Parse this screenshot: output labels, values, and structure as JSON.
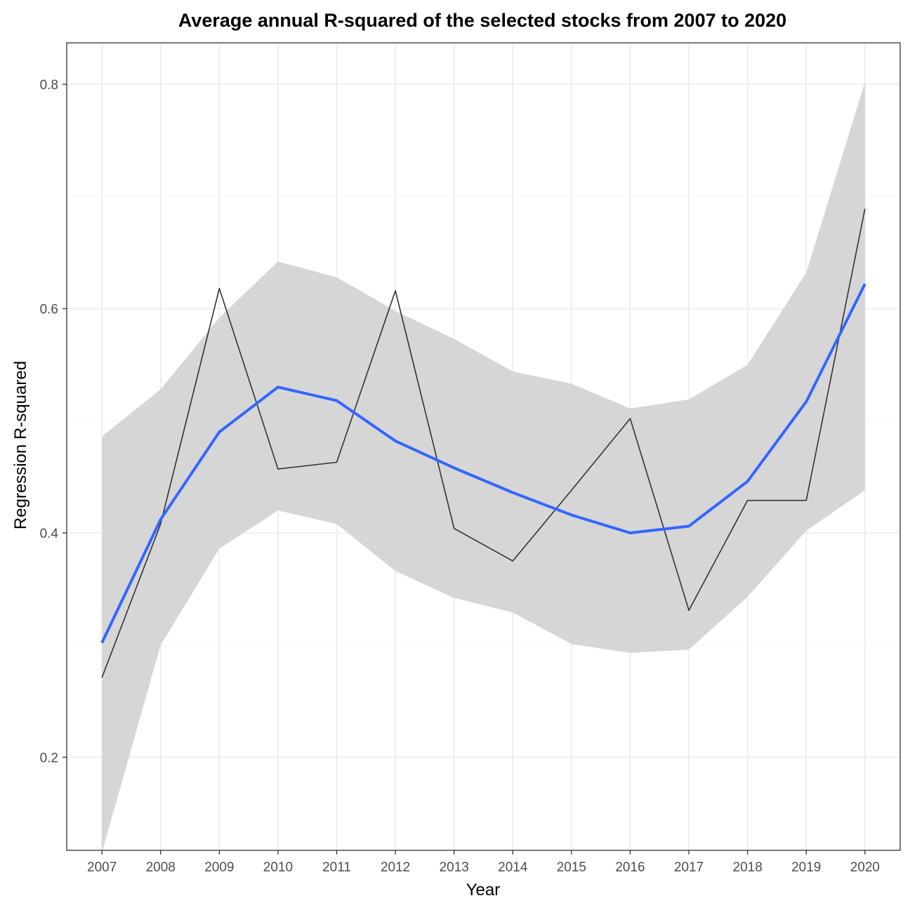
{
  "chart_data": {
    "type": "line",
    "title": "Average annual R-squared of the selected stocks from 2007 to 2020",
    "xlabel": "Year",
    "ylabel": "Regression R-squared",
    "x": [
      2007,
      2008,
      2009,
      2010,
      2011,
      2012,
      2013,
      2014,
      2015,
      2016,
      2017,
      2018,
      2019,
      2020
    ],
    "x_tick_labels": [
      "2007",
      "2008",
      "2009",
      "2010",
      "2011",
      "2012",
      "2013",
      "2014",
      "2015",
      "2016",
      "2017",
      "2018",
      "2019",
      "2020"
    ],
    "y_tick_values": [
      0.2,
      0.4,
      0.6,
      0.8
    ],
    "y_tick_labels": [
      "0.2",
      "0.4",
      "0.6",
      "0.8"
    ],
    "xlim": [
      2006.4,
      2020.6
    ],
    "ylim": [
      0.117,
      0.837
    ],
    "grid": true,
    "series": [
      {
        "values": [
          0.271,
          0.408,
          0.618,
          0.457,
          0.463,
          0.616,
          0.404,
          0.375,
          0.438,
          0.502,
          0.331,
          0.429,
          0.429,
          0.689
        ],
        "color": "#333333"
      },
      {
        "values": [
          0.302,
          0.412,
          0.49,
          0.53,
          0.518,
          0.482,
          0.458,
          0.436,
          0.416,
          0.4,
          0.406,
          0.446,
          0.517,
          0.622
        ],
        "color": "#3366ff",
        "band_lower": [
          0.115,
          0.3,
          0.386,
          0.42,
          0.408,
          0.366,
          0.342,
          0.329,
          0.301,
          0.293,
          0.296,
          0.343,
          0.402,
          0.438
        ],
        "band_upper": [
          0.486,
          0.528,
          0.592,
          0.642,
          0.628,
          0.598,
          0.573,
          0.544,
          0.533,
          0.511,
          0.519,
          0.55,
          0.632,
          0.802
        ],
        "band_color": "#d6d6d6"
      }
    ]
  }
}
